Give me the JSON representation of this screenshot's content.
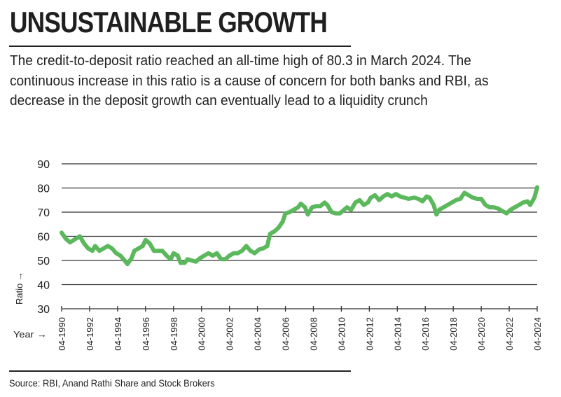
{
  "header": {
    "title": "UNSUSTAINABLE GROWTH",
    "subtitle": "The credit-to-deposit ratio reached an all-time high of 80.3 in March 2024. The continuous increase in this ratio is a cause of concern for both banks and RBI, as decrease in the deposit growth can eventually lead to a liquidity crunch"
  },
  "footer": {
    "source": "Source: RBI, Anand Rathi Share and Stock Brokers"
  },
  "colors": {
    "line": "#5cb85c",
    "grid": "#333333",
    "text": "#222222"
  },
  "chart_data": {
    "type": "line",
    "title": "UNSUSTAINABLE GROWTH",
    "xlabel": "Year →",
    "ylabel": "Ratio →",
    "ylim": [
      30,
      90
    ],
    "xlim": [
      1990,
      2024
    ],
    "yticks": [
      30,
      40,
      50,
      60,
      70,
      80,
      90
    ],
    "xticks": [
      1990,
      1992,
      1994,
      1996,
      1998,
      2000,
      2002,
      2004,
      2006,
      2008,
      2010,
      2012,
      2014,
      2016,
      2018,
      2020,
      2022,
      2024
    ],
    "xtick_labels": [
      "04-1990",
      "04-1992",
      "04-1994",
      "04-1996",
      "04-1998",
      "04-2000",
      "04-2002",
      "04-2004",
      "04-2006",
      "04-2008",
      "04-2010",
      "04-2012",
      "04-2014",
      "04-2016",
      "04-2018",
      "04-2020",
      "04-2022",
      "04-2024"
    ],
    "grid": "horizontal",
    "series": [
      {
        "name": "Credit-to-deposit ratio",
        "x": [
          1990.0,
          1990.3,
          1990.6,
          1991.0,
          1991.3,
          1991.6,
          1991.9,
          1992.2,
          1992.4,
          1992.7,
          1993.0,
          1993.3,
          1993.6,
          1993.9,
          1994.2,
          1994.5,
          1994.7,
          1995.0,
          1995.2,
          1995.5,
          1995.8,
          1996.0,
          1996.3,
          1996.6,
          1996.9,
          1997.2,
          1997.5,
          1997.8,
          1998.0,
          1998.3,
          1998.5,
          1998.8,
          1999.0,
          1999.3,
          1999.6,
          1999.9,
          2000.2,
          2000.5,
          2000.8,
          2001.1,
          2001.4,
          2001.7,
          2002.0,
          2002.3,
          2002.6,
          2002.9,
          2003.2,
          2003.5,
          2003.8,
          2004.1,
          2004.4,
          2004.7,
          2004.9,
          2005.2,
          2005.5,
          2005.8,
          2006.0,
          2006.3,
          2006.6,
          2006.9,
          2007.1,
          2007.4,
          2007.6,
          2007.9,
          2008.2,
          2008.5,
          2008.8,
          2009.0,
          2009.3,
          2009.6,
          2009.9,
          2010.2,
          2010.4,
          2010.7,
          2011.0,
          2011.3,
          2011.6,
          2011.9,
          2012.1,
          2012.4,
          2012.7,
          2013.0,
          2013.3,
          2013.6,
          2013.9,
          2014.2,
          2014.5,
          2014.8,
          2015.2,
          2015.5,
          2015.8,
          2016.1,
          2016.3,
          2016.6,
          2016.8,
          2017.0,
          2017.3,
          2017.6,
          2017.9,
          2018.2,
          2018.5,
          2018.8,
          2019.1,
          2019.4,
          2019.7,
          2020.0,
          2020.3,
          2020.6,
          2020.9,
          2021.2,
          2021.5,
          2021.8,
          2022.1,
          2022.4,
          2022.7,
          2023.0,
          2023.3,
          2023.5,
          2023.8,
          2024.0
        ],
        "values": [
          61.5,
          59,
          57.5,
          59,
          60,
          57,
          55,
          54,
          56,
          54,
          55,
          56,
          55,
          53,
          52,
          50,
          48.5,
          51,
          54,
          55,
          56,
          58.5,
          57,
          54,
          54,
          54,
          52,
          50.5,
          53,
          52,
          49,
          49,
          50.5,
          50,
          49.5,
          51,
          52,
          53,
          52,
          53,
          50.5,
          50.5,
          52,
          53,
          53,
          54,
          56,
          54,
          53,
          54.5,
          55,
          56,
          61,
          62,
          63.5,
          66,
          69.5,
          70,
          71,
          72,
          73.5,
          72,
          69,
          72,
          72.5,
          72.5,
          74,
          73,
          70,
          69.5,
          69.5,
          71,
          72,
          71,
          74,
          75,
          73,
          74,
          76,
          77,
          75,
          76.5,
          77.5,
          76.5,
          77.5,
          76.5,
          76,
          75.5,
          76,
          75.5,
          74.5,
          76.5,
          76,
          73,
          69,
          71,
          72,
          73,
          74,
          75,
          75.5,
          78,
          77,
          76,
          75.5,
          75.5,
          73,
          72,
          72,
          71.5,
          70.5,
          69.5,
          71,
          72,
          73,
          74,
          74.5,
          73,
          76,
          80.3
        ]
      }
    ]
  }
}
